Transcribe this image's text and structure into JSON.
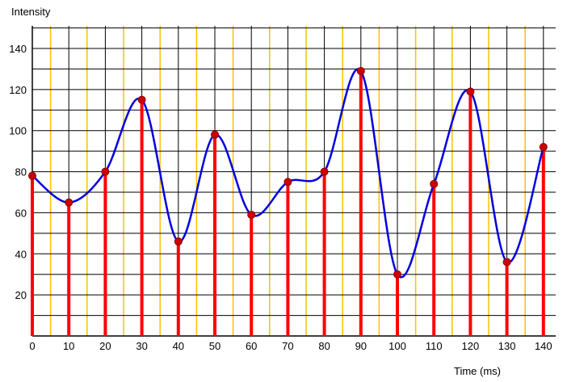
{
  "chart_data": {
    "type": "line",
    "title": "",
    "xlabel": "Time (ms)",
    "ylabel": "Intensity",
    "xlim": [
      0,
      143
    ],
    "ylim": [
      0,
      150
    ],
    "x_ticks": [
      0,
      10,
      20,
      30,
      40,
      50,
      60,
      70,
      80,
      90,
      100,
      110,
      120,
      130,
      140
    ],
    "y_ticks": [
      20,
      40,
      60,
      80,
      100,
      120,
      140
    ],
    "grid": true,
    "series": [
      {
        "type": "stem",
        "x": [
          0,
          10,
          20,
          30,
          40,
          50,
          60,
          70,
          80,
          90,
          100,
          110,
          120,
          130,
          140
        ],
        "values": [
          78,
          65,
          80,
          115,
          46,
          98,
          59,
          75,
          80,
          129,
          30,
          74,
          119,
          36,
          92
        ]
      }
    ],
    "colors": {
      "stem": "#ff0000",
      "marker": "#cc0000",
      "curve": "#0000dd",
      "grid_major": "#000000",
      "grid_minor": "#ffc000"
    }
  }
}
